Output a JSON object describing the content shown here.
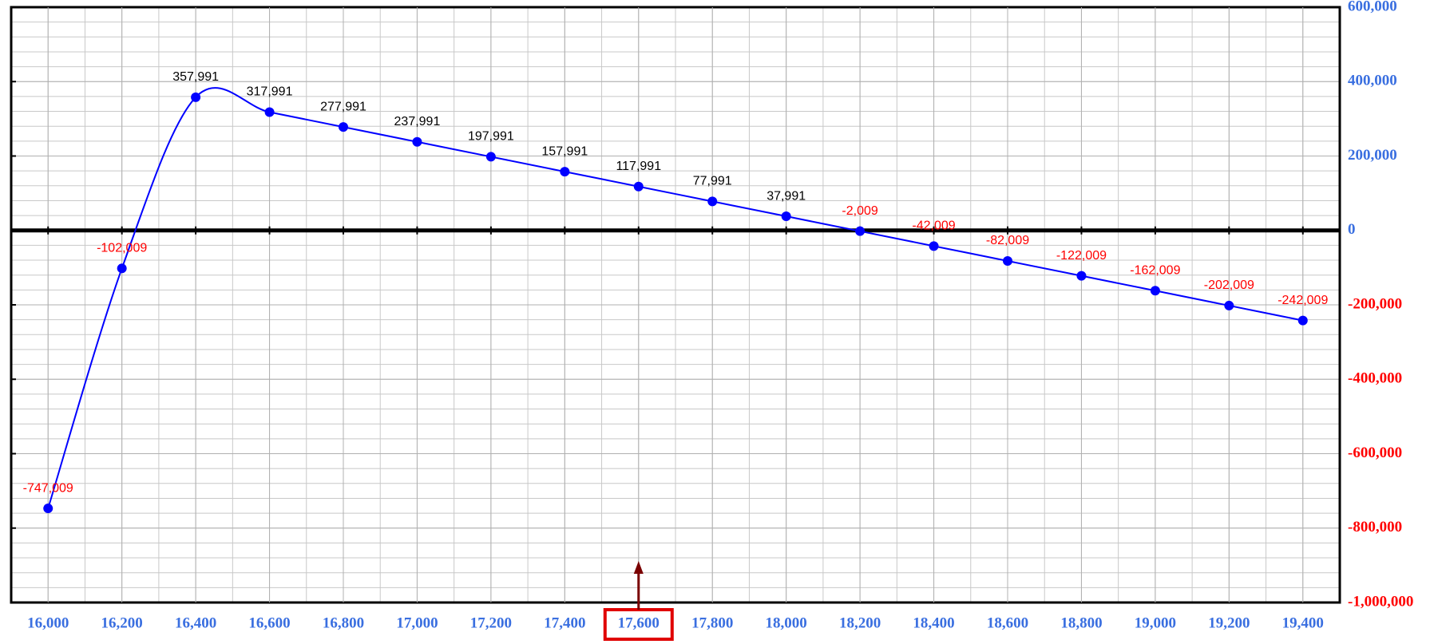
{
  "chart_data": {
    "type": "line",
    "x": [
      16000,
      16200,
      16400,
      16600,
      16800,
      17000,
      17200,
      17400,
      17600,
      17800,
      18000,
      18200,
      18400,
      18600,
      18800,
      19000,
      19200,
      19400
    ],
    "series": [
      {
        "color": "#0000ff",
        "values": [
          -747009,
          -102009,
          357991,
          317991,
          277991,
          237991,
          197991,
          157991,
          117991,
          77991,
          37991,
          -2009,
          -42009,
          -82009,
          -122009,
          -162009,
          -202009,
          -242009
        ],
        "value_labels": [
          "-747,009",
          "-102,009",
          "357,991",
          "317,991",
          "277,991",
          "237,991",
          "197,991",
          "157,991",
          "117,991",
          "77,991",
          "37,991",
          "-2,009",
          "-42,009",
          "-82,009",
          "-122,009",
          "-162,009",
          "-202,009",
          "-242,009"
        ]
      }
    ],
    "xlim": [
      15900,
      19500
    ],
    "xticks": [
      {
        "value": 16000,
        "label": "16,000"
      },
      {
        "value": 16200,
        "label": "16,200"
      },
      {
        "value": 16400,
        "label": "16,400"
      },
      {
        "value": 16600,
        "label": "16,600"
      },
      {
        "value": 16800,
        "label": "16,800"
      },
      {
        "value": 17000,
        "label": "17,000"
      },
      {
        "value": 17200,
        "label": "17,200"
      },
      {
        "value": 17400,
        "label": "17,400"
      },
      {
        "value": 17600,
        "label": "17,600"
      },
      {
        "value": 17800,
        "label": "17,800"
      },
      {
        "value": 18000,
        "label": "18,000"
      },
      {
        "value": 18200,
        "label": "18,200"
      },
      {
        "value": 18400,
        "label": "18,400"
      },
      {
        "value": 18600,
        "label": "18,600"
      },
      {
        "value": 18800,
        "label": "18,800"
      },
      {
        "value": 19000,
        "label": "19,000"
      },
      {
        "value": 19200,
        "label": "19,200"
      },
      {
        "value": 19400,
        "label": "19,400"
      }
    ],
    "ylim": [
      -1000000,
      600000
    ],
    "yticks": [
      {
        "value": -1000000,
        "label": "-1,000,000"
      },
      {
        "value": -800000,
        "label": "-800,000"
      },
      {
        "value": -600000,
        "label": "-600,000"
      },
      {
        "value": -400000,
        "label": "-400,000"
      },
      {
        "value": -200000,
        "label": "-200,000"
      },
      0,
      {
        "value": 200000,
        "label": "200,000"
      },
      {
        "value": 400000,
        "label": "400,000"
      },
      {
        "value": 600000,
        "label": "600,000"
      }
    ],
    "grid": true,
    "smooth": true,
    "highlight_x": 17600,
    "highlight_color": "#e00000",
    "label_colors": {
      "positive": "#000000",
      "negative": "#ff0000"
    },
    "tick_colors": {
      "positive": "#3a6fe0",
      "negative": "#ff0000"
    }
  }
}
